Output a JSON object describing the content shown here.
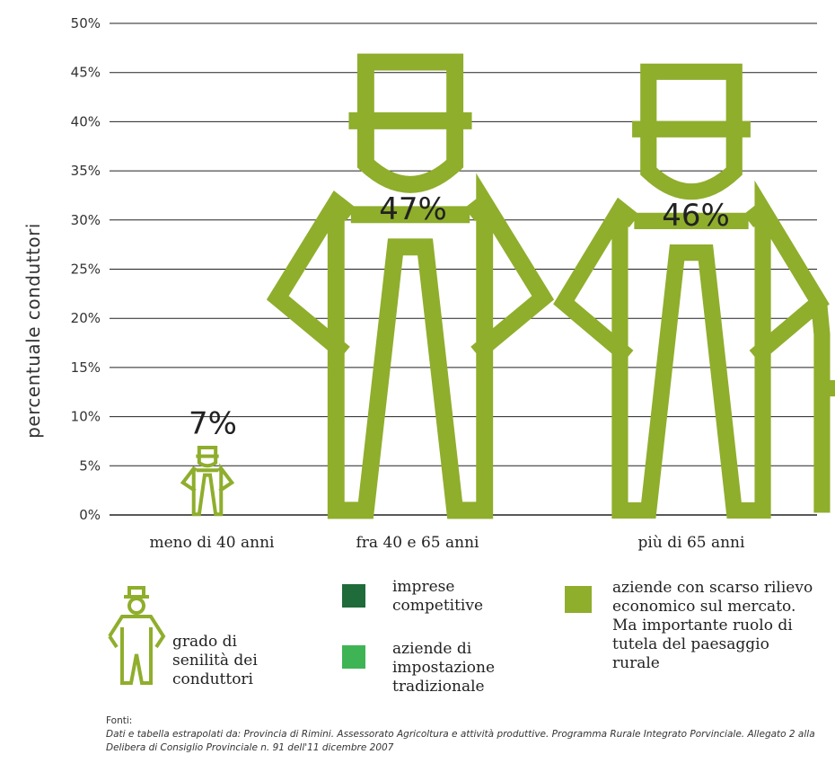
{
  "colors": {
    "figure": "#8fae2c",
    "imprese": "#1f6b3a",
    "tradizionali": "#3fb455",
    "scarso_rilievo": "#8fae2c",
    "grid": "#222222"
  },
  "chart_data": {
    "type": "bar",
    "ylabel": "percentuale conduttori",
    "ylim": [
      0,
      50
    ],
    "yticks": [
      "0%",
      "5%",
      "10%",
      "15%",
      "20%",
      "25%",
      "30%",
      "35%",
      "40%",
      "45%",
      "50%"
    ],
    "grid": true,
    "categories": [
      "meno di 40 anni",
      "fra 40 e 65 anni",
      "più di 65 anni"
    ],
    "values": [
      7,
      47,
      46
    ],
    "value_labels": [
      "7%",
      "47%",
      "46%"
    ]
  },
  "legend": {
    "figure_label": "grado di senilità dei conduttori",
    "imprese": "imprese competitive",
    "tradizionali": "aziende di impostazione tradizionale",
    "scarso_rilievo": "aziende con scarso rilievo economico sul mercato. Ma importante ruolo di tutela del paesaggio rurale"
  },
  "sources": {
    "title": "Fonti:",
    "text": "Dati e tabella estrapolati da: Provincia di Rimini. Assessorato Agricoltura e attività produttive. Programma Rurale Integrato Porvinciale. Allegato 2 alla Delibera di Consiglio Provinciale n. 91 dell'11 dicembre 2007"
  }
}
